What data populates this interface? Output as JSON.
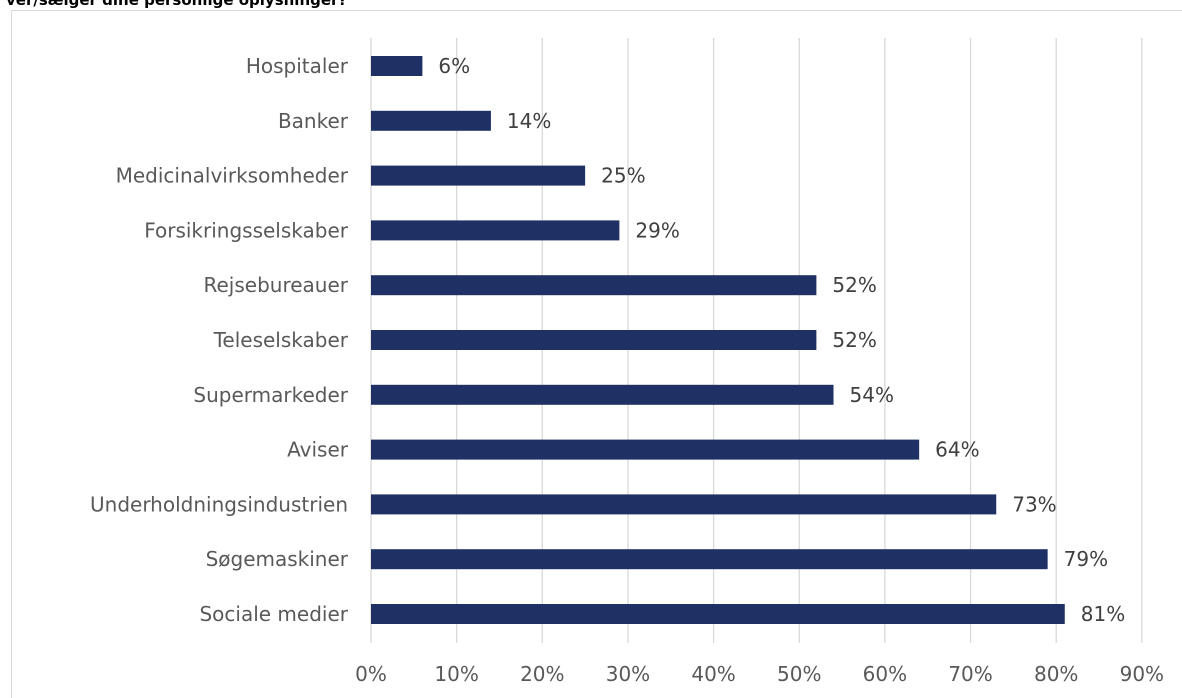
{
  "chart_data": {
    "type": "bar",
    "orientation": "horizontal",
    "title": "ver/sælger dine personlige oplysninger?",
    "categories": [
      "Hospitaler",
      "Banker",
      "Medicinalvirksomheder",
      "Forsikringsselskaber",
      "Rejsebureauer",
      "Teleselskaber",
      "Supermarkeder",
      "Aviser",
      "Underholdningsindustrien",
      "Søgemaskiner",
      "Sociale medier"
    ],
    "values": [
      6,
      14,
      25,
      29,
      52,
      52,
      54,
      64,
      73,
      79,
      81
    ],
    "data_labels": [
      "6%",
      "14%",
      "25%",
      "29%",
      "52%",
      "52%",
      "54%",
      "64%",
      "73%",
      "79%",
      "81%"
    ],
    "x_ticks": [
      "0%",
      "10%",
      "20%",
      "30%",
      "40%",
      "50%",
      "60%",
      "70%",
      "80%",
      "90%"
    ],
    "xlim": [
      0,
      90
    ],
    "xlabel": "",
    "ylabel": "",
    "grid": true,
    "bar_color": "#1f3164",
    "grid_color": "#d9d9d9"
  }
}
